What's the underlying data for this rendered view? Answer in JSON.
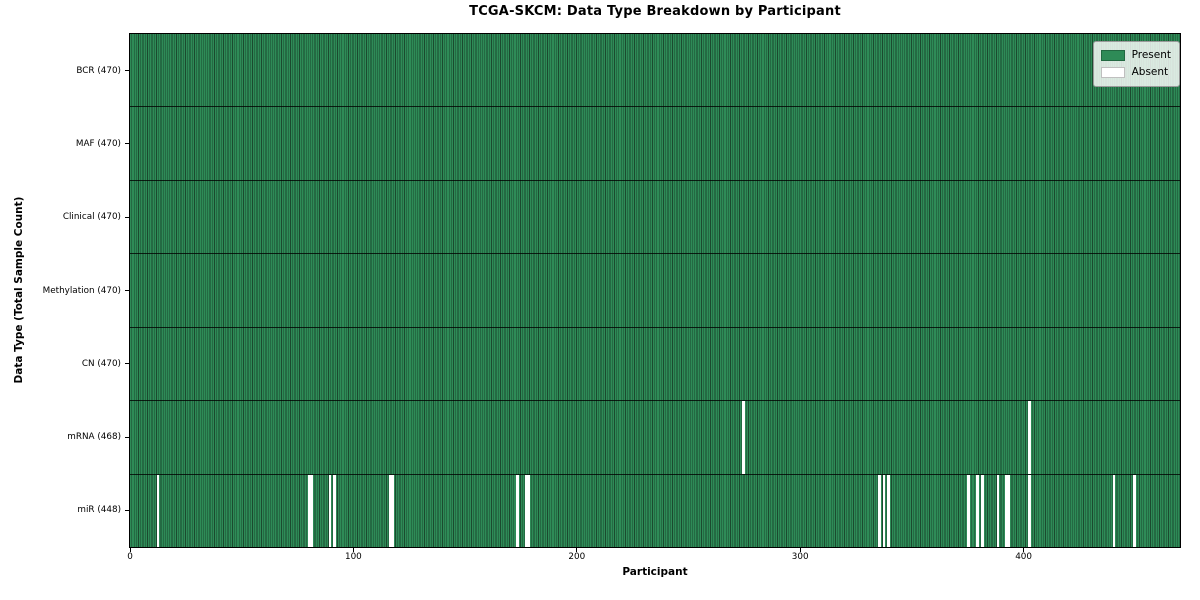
{
  "chart_data": {
    "type": "heatmap",
    "title": "TCGA-SKCM: Data Type Breakdown by Participant",
    "xlabel": "Participant",
    "ylabel": "Data Type (Total Sample Count)",
    "x_range": [
      0,
      470
    ],
    "x_ticks": [
      "0",
      "100",
      "200",
      "300",
      "400"
    ],
    "total_participants": 470,
    "grid": false,
    "legend": {
      "position": "upper right",
      "entries": [
        {
          "label": "Present",
          "color": "#2e8b57"
        },
        {
          "label": "Absent",
          "color": "#ffffff"
        }
      ]
    },
    "colors": {
      "present": "#2e8b57",
      "absent": "#ffffff",
      "cell_edge": "#1b4a2f",
      "row_separator": "#000000"
    },
    "rows": [
      {
        "label": "BCR (470)",
        "data_type": "BCR",
        "present_count": 470,
        "absent_participants": []
      },
      {
        "label": "MAF (470)",
        "data_type": "MAF",
        "present_count": 470,
        "absent_participants": []
      },
      {
        "label": "Clinical (470)",
        "data_type": "Clinical",
        "present_count": 470,
        "absent_participants": []
      },
      {
        "label": "Methylation (470)",
        "data_type": "Methylation",
        "present_count": 470,
        "absent_participants": []
      },
      {
        "label": "CN (470)",
        "data_type": "CN",
        "present_count": 470,
        "absent_participants": []
      },
      {
        "label": "mRNA (468)",
        "data_type": "mRNA",
        "present_count": 468,
        "absent_participants": [
          274,
          402
        ]
      },
      {
        "label": "miR (448)",
        "data_type": "miR",
        "present_count": 448,
        "absent_participants": [
          12,
          80,
          81,
          89,
          91,
          116,
          117,
          173,
          177,
          178,
          335,
          337,
          339,
          375,
          379,
          381,
          388,
          392,
          393,
          402,
          440,
          449
        ]
      }
    ]
  }
}
